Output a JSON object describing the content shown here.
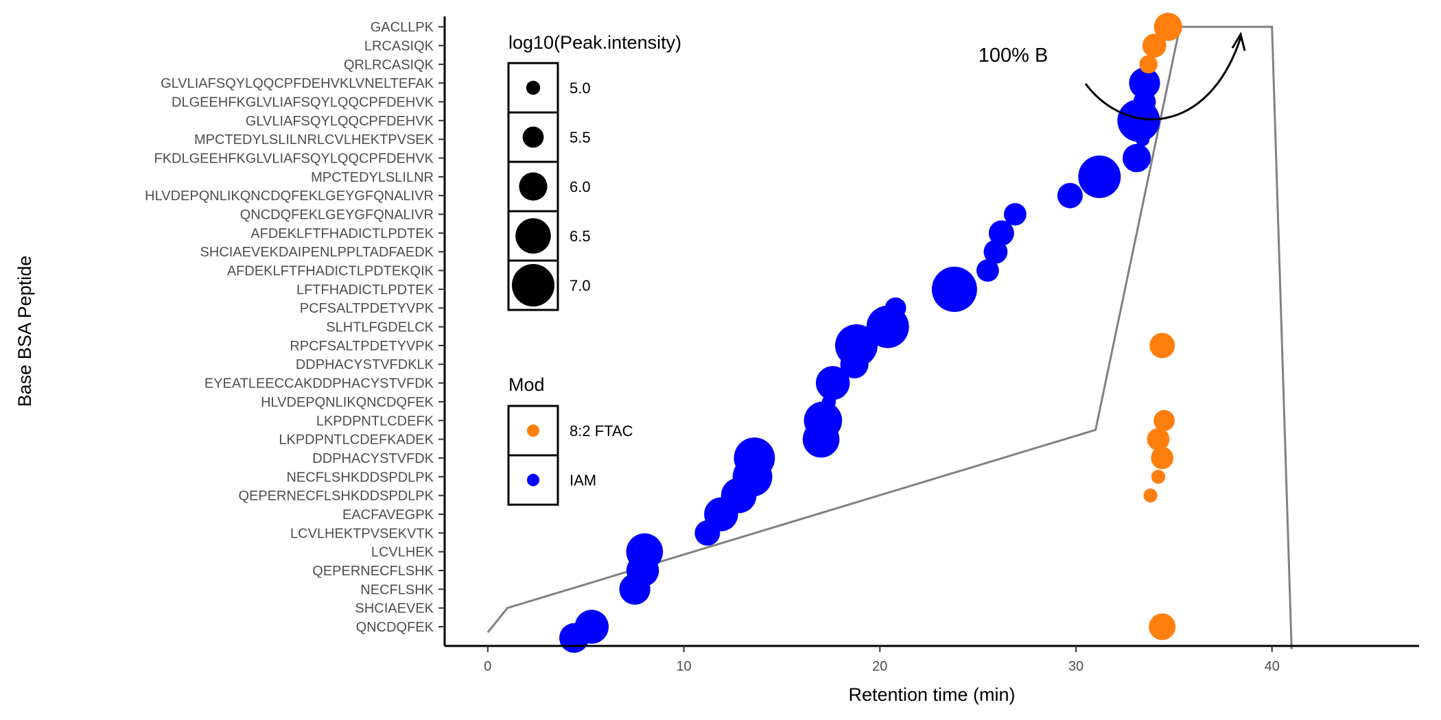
{
  "chart_data": {
    "type": "scatter",
    "xlabel": "Retention time (min)",
    "ylabel": "Base BSA Peptide",
    "xlim": [
      -2.2,
      47.5
    ],
    "xticks": [
      0,
      10,
      20,
      30,
      40
    ],
    "categories": [
      "QNCDQFEK",
      "SHCIAEVEK",
      "NECFLSHK",
      "QEPERNECFLSHK",
      "LCVLHEK",
      "LCVLHEKTPVSEKVTK",
      "EACFAVEGPK",
      "QEPERNECFLSHKDDSPDLPK",
      "NECFLSHKDDSPDLPK",
      "DDPHACYSTVFDK",
      "LKPDPNTLCDEFKADEK",
      "LKPDPNTLCDEFK",
      "HLVDEPQNLIKQNCDQFEK",
      "EYEATLEECCAKDDPHACYSTVFDK",
      "DDPHACYSTVFDKLK",
      "RPCFSALTPDETYVPK",
      "SLHTLFGDELCK",
      "PCFSALTPDETYVPK",
      "LFTFHADICTLPDTEK",
      "AFDEKLFTFHADICTLPDTEKQIK",
      "SHCIAEVEKDAIPENLPPLTADFAEDK",
      "AFDEKLFTFHADICTLPDTEK",
      "QNCDQFEKLGEYGFQNALIVR",
      "HLVDEPQNLIKQNCDQFEKLGEYGFQNALIVR",
      "MPCTEDYLSLILNR",
      "FKDLGEEHFKGLVLIAFSQYLQQCPFDEHVK",
      "MPCTEDYLSLILNRLCVLHEKTPVSEK",
      "GLVLIAFSQYLQQCPFDEHVK",
      "DLGEEHFKGLVLIAFSQYLQQCPFDEHVK",
      "GLVLIAFSQYLQQCPFDEHVKLVNELTEFAK",
      "QRLRCASIQK",
      "LRCASIQK",
      "GACLLPK"
    ],
    "size_legend": {
      "title": "log10(Peak.intensity)",
      "values": [
        "5.0",
        "5.5",
        "6.0",
        "6.5",
        "7.0"
      ]
    },
    "color_legend": {
      "title": "Mod",
      "entries": [
        {
          "label": "8:2 FTAC",
          "color": "#FF7F0E"
        },
        {
          "label": "IAM",
          "color": "#0000FF"
        }
      ]
    },
    "series": [
      {
        "name": "IAM",
        "color": "#0000FF",
        "points": [
          {
            "x": 4.4,
            "y": -0.6,
            "size": 6.1
          },
          {
            "x": 5.3,
            "y": 0.0,
            "size": 6.4
          },
          {
            "x": 7.5,
            "y": 2.0,
            "size": 6.2
          },
          {
            "x": 7.9,
            "y": 3.0,
            "size": 6.3
          },
          {
            "x": 8.0,
            "y": 4.0,
            "size": 6.6
          },
          {
            "x": 11.2,
            "y": 5.0,
            "size": 5.8
          },
          {
            "x": 11.9,
            "y": 6.0,
            "size": 6.4
          },
          {
            "x": 12.8,
            "y": 7.0,
            "size": 6.5
          },
          {
            "x": 13.5,
            "y": 8.0,
            "size": 6.8
          },
          {
            "x": 13.6,
            "y": 9.0,
            "size": 6.9
          },
          {
            "x": 17.0,
            "y": 10.0,
            "size": 6.6
          },
          {
            "x": 17.1,
            "y": 11.0,
            "size": 6.7
          },
          {
            "x": 17.4,
            "y": 12.0,
            "size": 5.0
          },
          {
            "x": 17.6,
            "y": 13.0,
            "size": 6.4
          },
          {
            "x": 18.7,
            "y": 14.0,
            "size": 6.0
          },
          {
            "x": 18.8,
            "y": 15.0,
            "size": 7.0
          },
          {
            "x": 20.4,
            "y": 16.0,
            "size": 7.0
          },
          {
            "x": 20.8,
            "y": 17.0,
            "size": 5.5
          },
          {
            "x": 23.8,
            "y": 18.0,
            "size": 7.2
          },
          {
            "x": 25.5,
            "y": 19.0,
            "size": 5.6
          },
          {
            "x": 25.9,
            "y": 20.0,
            "size": 5.7
          },
          {
            "x": 26.2,
            "y": 21.0,
            "size": 5.8
          },
          {
            "x": 26.9,
            "y": 22.0,
            "size": 5.6
          },
          {
            "x": 29.7,
            "y": 23.0,
            "size": 5.8
          },
          {
            "x": 31.2,
            "y": 24.0,
            "size": 7.0
          },
          {
            "x": 33.1,
            "y": 25.0,
            "size": 6.0
          },
          {
            "x": 33.4,
            "y": 26.0,
            "size": 5.0
          },
          {
            "x": 33.2,
            "y": 27.0,
            "size": 7.0
          },
          {
            "x": 33.5,
            "y": 28.0,
            "size": 5.6
          },
          {
            "x": 33.5,
            "y": 29.0,
            "size": 6.2
          }
        ]
      },
      {
        "name": "8:2 FTAC",
        "color": "#FF7F0E",
        "points": [
          {
            "x": 34.4,
            "y": 0.0,
            "size": 5.9
          },
          {
            "x": 33.8,
            "y": 7.0,
            "size": 5.0
          },
          {
            "x": 34.2,
            "y": 8.0,
            "size": 5.0
          },
          {
            "x": 34.4,
            "y": 9.0,
            "size": 5.6
          },
          {
            "x": 34.2,
            "y": 10.0,
            "size": 5.6
          },
          {
            "x": 34.5,
            "y": 11.0,
            "size": 5.5
          },
          {
            "x": 34.4,
            "y": 15.0,
            "size": 5.8
          },
          {
            "x": 33.7,
            "y": 30.0,
            "size": 5.3
          },
          {
            "x": 34.0,
            "y": 31.0,
            "size": 5.7
          },
          {
            "x": 34.7,
            "y": 32.0,
            "size": 6.0
          }
        ]
      }
    ],
    "gradient_line": {
      "color": "#808080",
      "x": [
        0,
        1,
        31,
        35.3,
        40,
        41
      ],
      "y": [
        -0.3,
        1.0,
        10.5,
        32.0,
        32.0,
        -1.2
      ]
    },
    "annotations": [
      {
        "text": "100% B",
        "x": 26.8,
        "y": 30.5
      }
    ],
    "grid": false
  }
}
